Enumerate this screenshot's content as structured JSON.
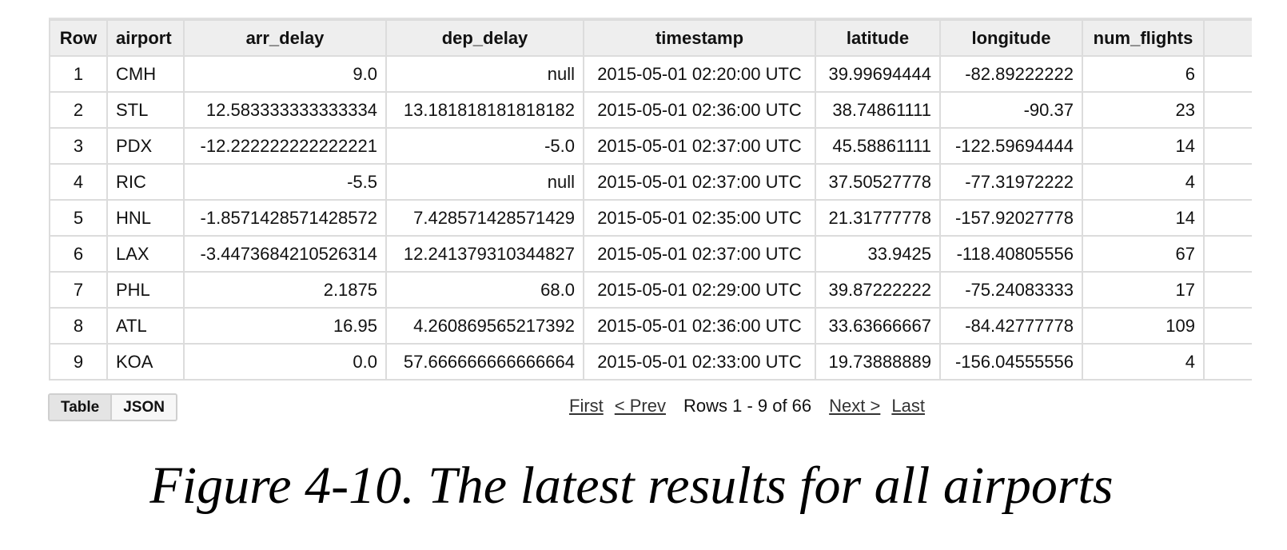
{
  "table": {
    "columns": [
      "Row",
      "airport",
      "arr_delay",
      "dep_delay",
      "timestamp",
      "latitude",
      "longitude",
      "num_flights"
    ],
    "rows": [
      [
        "1",
        "CMH",
        "9.0",
        "null",
        "2015-05-01 02:20:00 UTC",
        "39.99694444",
        "-82.89222222",
        "6"
      ],
      [
        "2",
        "STL",
        "12.583333333333334",
        "13.181818181818182",
        "2015-05-01 02:36:00 UTC",
        "38.74861111",
        "-90.37",
        "23"
      ],
      [
        "3",
        "PDX",
        "-12.222222222222221",
        "-5.0",
        "2015-05-01 02:37:00 UTC",
        "45.58861111",
        "-122.59694444",
        "14"
      ],
      [
        "4",
        "RIC",
        "-5.5",
        "null",
        "2015-05-01 02:37:00 UTC",
        "37.50527778",
        "-77.31972222",
        "4"
      ],
      [
        "5",
        "HNL",
        "-1.8571428571428572",
        "7.428571428571429",
        "2015-05-01 02:35:00 UTC",
        "21.31777778",
        "-157.92027778",
        "14"
      ],
      [
        "6",
        "LAX",
        "-3.4473684210526314",
        "12.241379310344827",
        "2015-05-01 02:37:00 UTC",
        "33.9425",
        "-118.40805556",
        "67"
      ],
      [
        "7",
        "PHL",
        "2.1875",
        "68.0",
        "2015-05-01 02:29:00 UTC",
        "39.87222222",
        "-75.24083333",
        "17"
      ],
      [
        "8",
        "ATL",
        "16.95",
        "4.260869565217392",
        "2015-05-01 02:36:00 UTC",
        "33.63666667",
        "-84.42777778",
        "109"
      ],
      [
        "9",
        "KOA",
        "0.0",
        "57.666666666666664",
        "2015-05-01 02:33:00 UTC",
        "19.73888889",
        "-156.04555556",
        "4"
      ]
    ]
  },
  "view_toggle": {
    "table_label": "Table",
    "json_label": "JSON",
    "active": "Table"
  },
  "pager": {
    "first": "First",
    "prev": "< Prev",
    "status": "Rows 1 - 9 of 66",
    "next": "Next >",
    "last": "Last"
  },
  "caption": "Figure 4-10. The latest results for all airports"
}
